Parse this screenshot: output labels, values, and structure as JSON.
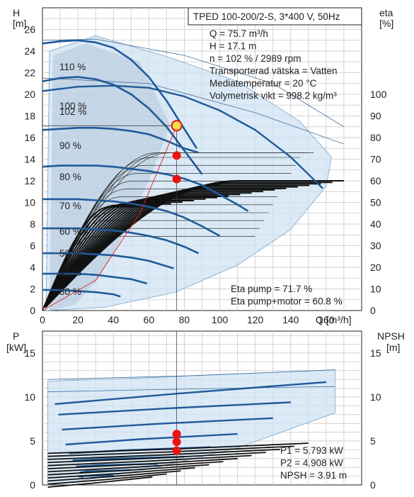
{
  "chart_data": [
    {
      "type": "line",
      "panel": "head",
      "title": "TPED 100-200/2-S, 3*400 V, 50Hz",
      "ylabel": "H",
      "yunit": "[m]",
      "y2label": "eta",
      "y2unit": "[%]",
      "xlabel": "Q [m³/h]",
      "xlim": [
        0,
        180
      ],
      "ylim": [
        0,
        28
      ],
      "y2lim": [
        0,
        140
      ],
      "xticks": [
        0,
        20,
        40,
        60,
        80,
        100,
        120,
        140,
        160
      ],
      "yticks": [
        0,
        2,
        4,
        6,
        8,
        10,
        12,
        14,
        16,
        18,
        20,
        22,
        24,
        26
      ],
      "y2ticks": [
        0,
        10,
        20,
        30,
        40,
        50,
        60,
        70,
        80,
        90,
        100
      ],
      "grid": true,
      "info_lines": [
        "Q = 75.7 m³/h",
        "H = 17.1 m",
        "n = 102 % / 2989 rpm",
        "Transporterad vätska = Vatten",
        "Mediatemperatur = 20 °C",
        "Volymetrisk vikt = 998.2 kg/m³"
      ],
      "eta_lines": [
        "Eta pump = 71.7 %",
        "Eta pump+motor = 60.8 %"
      ],
      "speed_curves": [
        {
          "name": "110 %",
          "x": [
            0,
            10,
            20,
            30,
            40,
            50,
            60,
            70,
            80,
            87
          ],
          "y": [
            24.7,
            24.9,
            25.0,
            24.8,
            24.3,
            23.2,
            21.6,
            19.4,
            16.8,
            15.0
          ]
        },
        {
          "name": "100 %",
          "x": [
            0,
            10,
            20,
            30,
            40,
            50,
            60,
            70,
            80,
            90
          ],
          "y": [
            21.2,
            21.5,
            21.6,
            21.4,
            20.9,
            20.0,
            18.7,
            17.0,
            14.8,
            12.6
          ]
        },
        {
          "name": "102 %",
          "x": [
            0,
            20,
            40,
            60,
            80,
            100,
            120,
            140,
            150,
            158
          ],
          "y": [
            20.3,
            20.7,
            20.8,
            20.6,
            19.8,
            18.5,
            16.7,
            14.2,
            12.6,
            11.3
          ]
        },
        {
          "name": "90 %",
          "x": [
            0,
            10,
            20,
            30,
            40,
            50,
            60,
            70,
            80,
            88
          ],
          "y": [
            16.7,
            16.8,
            16.9,
            16.9,
            16.8,
            16.6,
            16.3,
            15.7,
            15.0,
            14.6
          ]
        },
        {
          "name": "80 %",
          "x": [
            0,
            10,
            20,
            30,
            40,
            50,
            60,
            70,
            80,
            90,
            100,
            110,
            116
          ],
          "y": [
            13.3,
            13.4,
            13.4,
            13.4,
            13.3,
            13.1,
            12.9,
            12.6,
            12.2,
            11.6,
            10.7,
            9.8,
            9.2
          ]
        },
        {
          "name": "70 %",
          "x": [
            0,
            10,
            20,
            30,
            40,
            50,
            60,
            70,
            80,
            90,
            100
          ],
          "y": [
            10.3,
            10.3,
            10.3,
            10.2,
            10.1,
            9.9,
            9.6,
            9.2,
            8.6,
            7.8,
            6.9
          ]
        },
        {
          "name": "60 %",
          "x": [
            0,
            10,
            20,
            30,
            40,
            50,
            60,
            70,
            80,
            88
          ],
          "y": [
            7.6,
            7.6,
            7.6,
            7.5,
            7.4,
            7.2,
            6.9,
            6.5,
            5.9,
            5.3
          ]
        },
        {
          "name": "50 %",
          "x": [
            0,
            10,
            20,
            30,
            40,
            50,
            60,
            70,
            74
          ],
          "y": [
            5.3,
            5.3,
            5.3,
            5.2,
            5.1,
            4.9,
            4.6,
            4.1,
            3.9
          ]
        },
        {
          "name": "40 %",
          "x": [
            0,
            10,
            20,
            30,
            40,
            50,
            59
          ],
          "y": [
            3.4,
            3.4,
            3.4,
            3.3,
            3.1,
            2.9,
            2.5
          ]
        },
        {
          "name": "30 %",
          "x": [
            0,
            10,
            20,
            30,
            40,
            44
          ],
          "y": [
            1.9,
            1.9,
            1.8,
            1.7,
            1.5,
            1.3
          ]
        }
      ],
      "curve_labels": [
        "110 %",
        "100 %",
        "102 %",
        "90 %",
        "80 %",
        "70 %",
        "60 %",
        "50 %",
        "40 %",
        "30 %"
      ],
      "operating_point": {
        "x": 75.7,
        "y": 17.1
      },
      "eta_markers": [
        {
          "x": 75.7,
          "eta": 71.7
        },
        {
          "x": 75.7,
          "eta": 60.8
        }
      ]
    },
    {
      "type": "line",
      "panel": "power",
      "ylabel": "P",
      "yunit": "[kW]",
      "y2label": "NPSH",
      "y2unit": "[m]",
      "xlim": [
        0,
        180
      ],
      "ylim": [
        0,
        17.5
      ],
      "y2lim": [
        0,
        17.5
      ],
      "yticks": [
        0,
        5,
        10,
        15
      ],
      "y2ticks": [
        0,
        5,
        10,
        15
      ],
      "grid": true,
      "readouts": [
        "P1 = 5.793 kW",
        "P2 = 4.908 kW",
        "NPSH = 3.91 m"
      ],
      "markers": [
        {
          "x": 75.7,
          "y": 5.793
        },
        {
          "x": 75.7,
          "y": 4.908
        },
        {
          "x": 75.7,
          "y": 3.91
        }
      ]
    }
  ],
  "colors": {
    "curve": "#1f5a9a",
    "region": "#cfe3f3",
    "region_dark": "#b3c5d8",
    "marker": "#ee1111",
    "operating_point": "#f2e24a",
    "grid": "#d2d2d2"
  }
}
